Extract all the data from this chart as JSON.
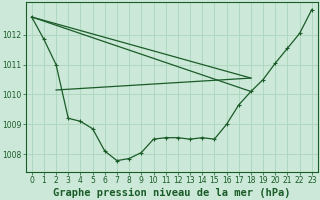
{
  "background_color": "#cce8d8",
  "grid_color": "#b0d8c0",
  "line_color": "#1a5c28",
  "title": "Graphe pression niveau de la mer (hPa)",
  "xlim": [
    -0.5,
    23.5
  ],
  "ylim": [
    1007.4,
    1013.1
  ],
  "yticks": [
    1008,
    1009,
    1010,
    1011,
    1012
  ],
  "xticks": [
    0,
    1,
    2,
    3,
    4,
    5,
    6,
    7,
    8,
    9,
    10,
    11,
    12,
    13,
    14,
    15,
    16,
    17,
    18,
    19,
    20,
    21,
    22,
    23
  ],
  "main_x": [
    0,
    1,
    2,
    3,
    4,
    5,
    6,
    7,
    8,
    9,
    10,
    11,
    12,
    13,
    14,
    15,
    16,
    17,
    18,
    19,
    20,
    21,
    22,
    23
  ],
  "main_y": [
    1012.6,
    1011.85,
    1011.0,
    1009.2,
    1009.1,
    1008.85,
    1008.1,
    1007.78,
    1007.85,
    1008.05,
    1008.5,
    1008.55,
    1008.55,
    1008.5,
    1008.55,
    1008.5,
    1009.0,
    1009.65,
    1010.1,
    1010.5,
    1011.05,
    1011.55,
    1012.05,
    1012.85
  ],
  "tline1_x": [
    0,
    18
  ],
  "tline1_y": [
    1012.6,
    1010.55
  ],
  "tline2_x": [
    0,
    18
  ],
  "tline2_y": [
    1012.6,
    1010.1
  ],
  "tline3_x": [
    2,
    18
  ],
  "tline3_y": [
    1010.15,
    1010.55
  ],
  "title_fontsize": 7.5,
  "tick_fontsize": 5.5
}
